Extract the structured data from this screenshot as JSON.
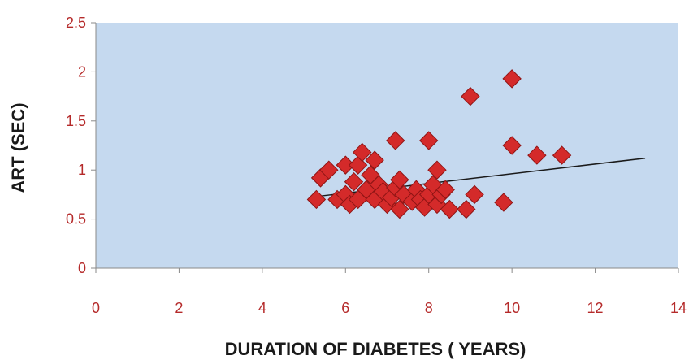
{
  "chart_data": {
    "type": "scatter",
    "title": "",
    "xlabel": "DURATION OF DIABETES ( YEARS)",
    "ylabel": "ART (SEC)",
    "xlim": [
      0,
      14
    ],
    "ylim": [
      0,
      2.5
    ],
    "x_ticks": [
      "0",
      "2",
      "4",
      "6",
      "8",
      "10",
      "12",
      "14"
    ],
    "y_ticks": [
      "0",
      "0.5",
      "1",
      "1.5",
      "2",
      "2.5"
    ],
    "grid": false,
    "legend": "none",
    "colors": {
      "plot_bg": "#c5d9ef",
      "marker": "#d42a2a",
      "tick_text": "#b52a2a",
      "trend": "#1a1a1a"
    },
    "points": [
      [
        5.3,
        0.7
      ],
      [
        5.4,
        0.92
      ],
      [
        5.6,
        1.0
      ],
      [
        5.8,
        0.7
      ],
      [
        6.0,
        0.75
      ],
      [
        6.0,
        1.05
      ],
      [
        6.1,
        0.65
      ],
      [
        6.2,
        0.88
      ],
      [
        6.3,
        0.7
      ],
      [
        6.3,
        1.05
      ],
      [
        6.4,
        1.18
      ],
      [
        6.5,
        0.8
      ],
      [
        6.6,
        0.95
      ],
      [
        6.7,
        1.1
      ],
      [
        6.7,
        0.7
      ],
      [
        6.8,
        0.85
      ],
      [
        6.9,
        0.78
      ],
      [
        7.0,
        0.65
      ],
      [
        7.1,
        0.72
      ],
      [
        7.2,
        0.82
      ],
      [
        7.2,
        1.3
      ],
      [
        7.3,
        0.6
      ],
      [
        7.3,
        0.9
      ],
      [
        7.4,
        0.75
      ],
      [
        7.6,
        0.68
      ],
      [
        7.7,
        0.8
      ],
      [
        7.8,
        0.7
      ],
      [
        7.9,
        0.62
      ],
      [
        8.0,
        1.3
      ],
      [
        8.0,
        0.75
      ],
      [
        8.1,
        0.85
      ],
      [
        8.2,
        1.0
      ],
      [
        8.2,
        0.65
      ],
      [
        8.3,
        0.75
      ],
      [
        8.4,
        0.8
      ],
      [
        8.5,
        0.6
      ],
      [
        8.9,
        0.6
      ],
      [
        9.0,
        1.75
      ],
      [
        9.1,
        0.75
      ],
      [
        9.8,
        0.67
      ],
      [
        10.0,
        1.93
      ],
      [
        10.0,
        1.25
      ],
      [
        10.6,
        1.15
      ],
      [
        11.2,
        1.15
      ]
    ],
    "trendline": {
      "x": [
        5.3,
        13.2
      ],
      "y": [
        0.73,
        1.12
      ]
    }
  }
}
